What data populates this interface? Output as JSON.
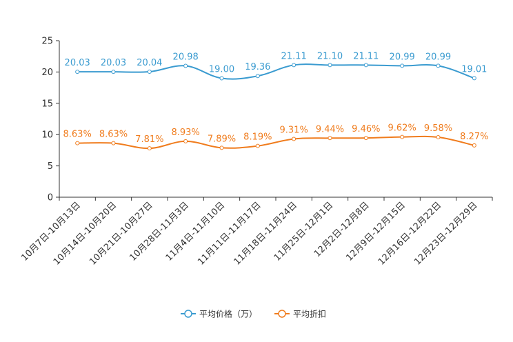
{
  "chart_data": {
    "type": "line",
    "title": "",
    "xlabel": "",
    "ylabel": "",
    "ylim": [
      0,
      25
    ],
    "yticks": [
      0,
      5,
      10,
      15,
      20,
      25
    ],
    "grid": false,
    "legend_position": "bottom-center",
    "categories": [
      "10月7日-10月13日",
      "10月14日-10月20日",
      "10月21日-10月27日",
      "10月28日-11月3日",
      "11月4日-11月10日",
      "11月11日-11月17日",
      "11月18日-11月24日",
      "11月25日-12月1日",
      "12月2日-12月8日",
      "12月9日-12月15日",
      "12月16日-12月22日",
      "12月23日-12月29日"
    ],
    "series": [
      {
        "name": "平均价格（万）",
        "color": "#3a9bd0",
        "values": [
          20.03,
          20.03,
          20.04,
          20.98,
          19.0,
          19.36,
          21.11,
          21.1,
          21.11,
          20.99,
          20.99,
          19.01
        ],
        "labels": [
          "20.03",
          "20.03",
          "20.04",
          "20.98",
          "19.00",
          "19.36",
          "21.11",
          "21.10",
          "21.11",
          "20.99",
          "20.99",
          "19.01"
        ]
      },
      {
        "name": "平均折扣",
        "color": "#f07c1d",
        "values": [
          8.63,
          8.63,
          7.81,
          8.93,
          7.89,
          8.19,
          9.31,
          9.44,
          9.46,
          9.62,
          9.58,
          8.27
        ],
        "labels": [
          "8.63%",
          "8.63%",
          "7.81%",
          "8.93%",
          "7.89%",
          "8.19%",
          "9.31%",
          "9.44%",
          "9.46%",
          "9.62%",
          "9.58%",
          "8.27%"
        ]
      }
    ]
  }
}
